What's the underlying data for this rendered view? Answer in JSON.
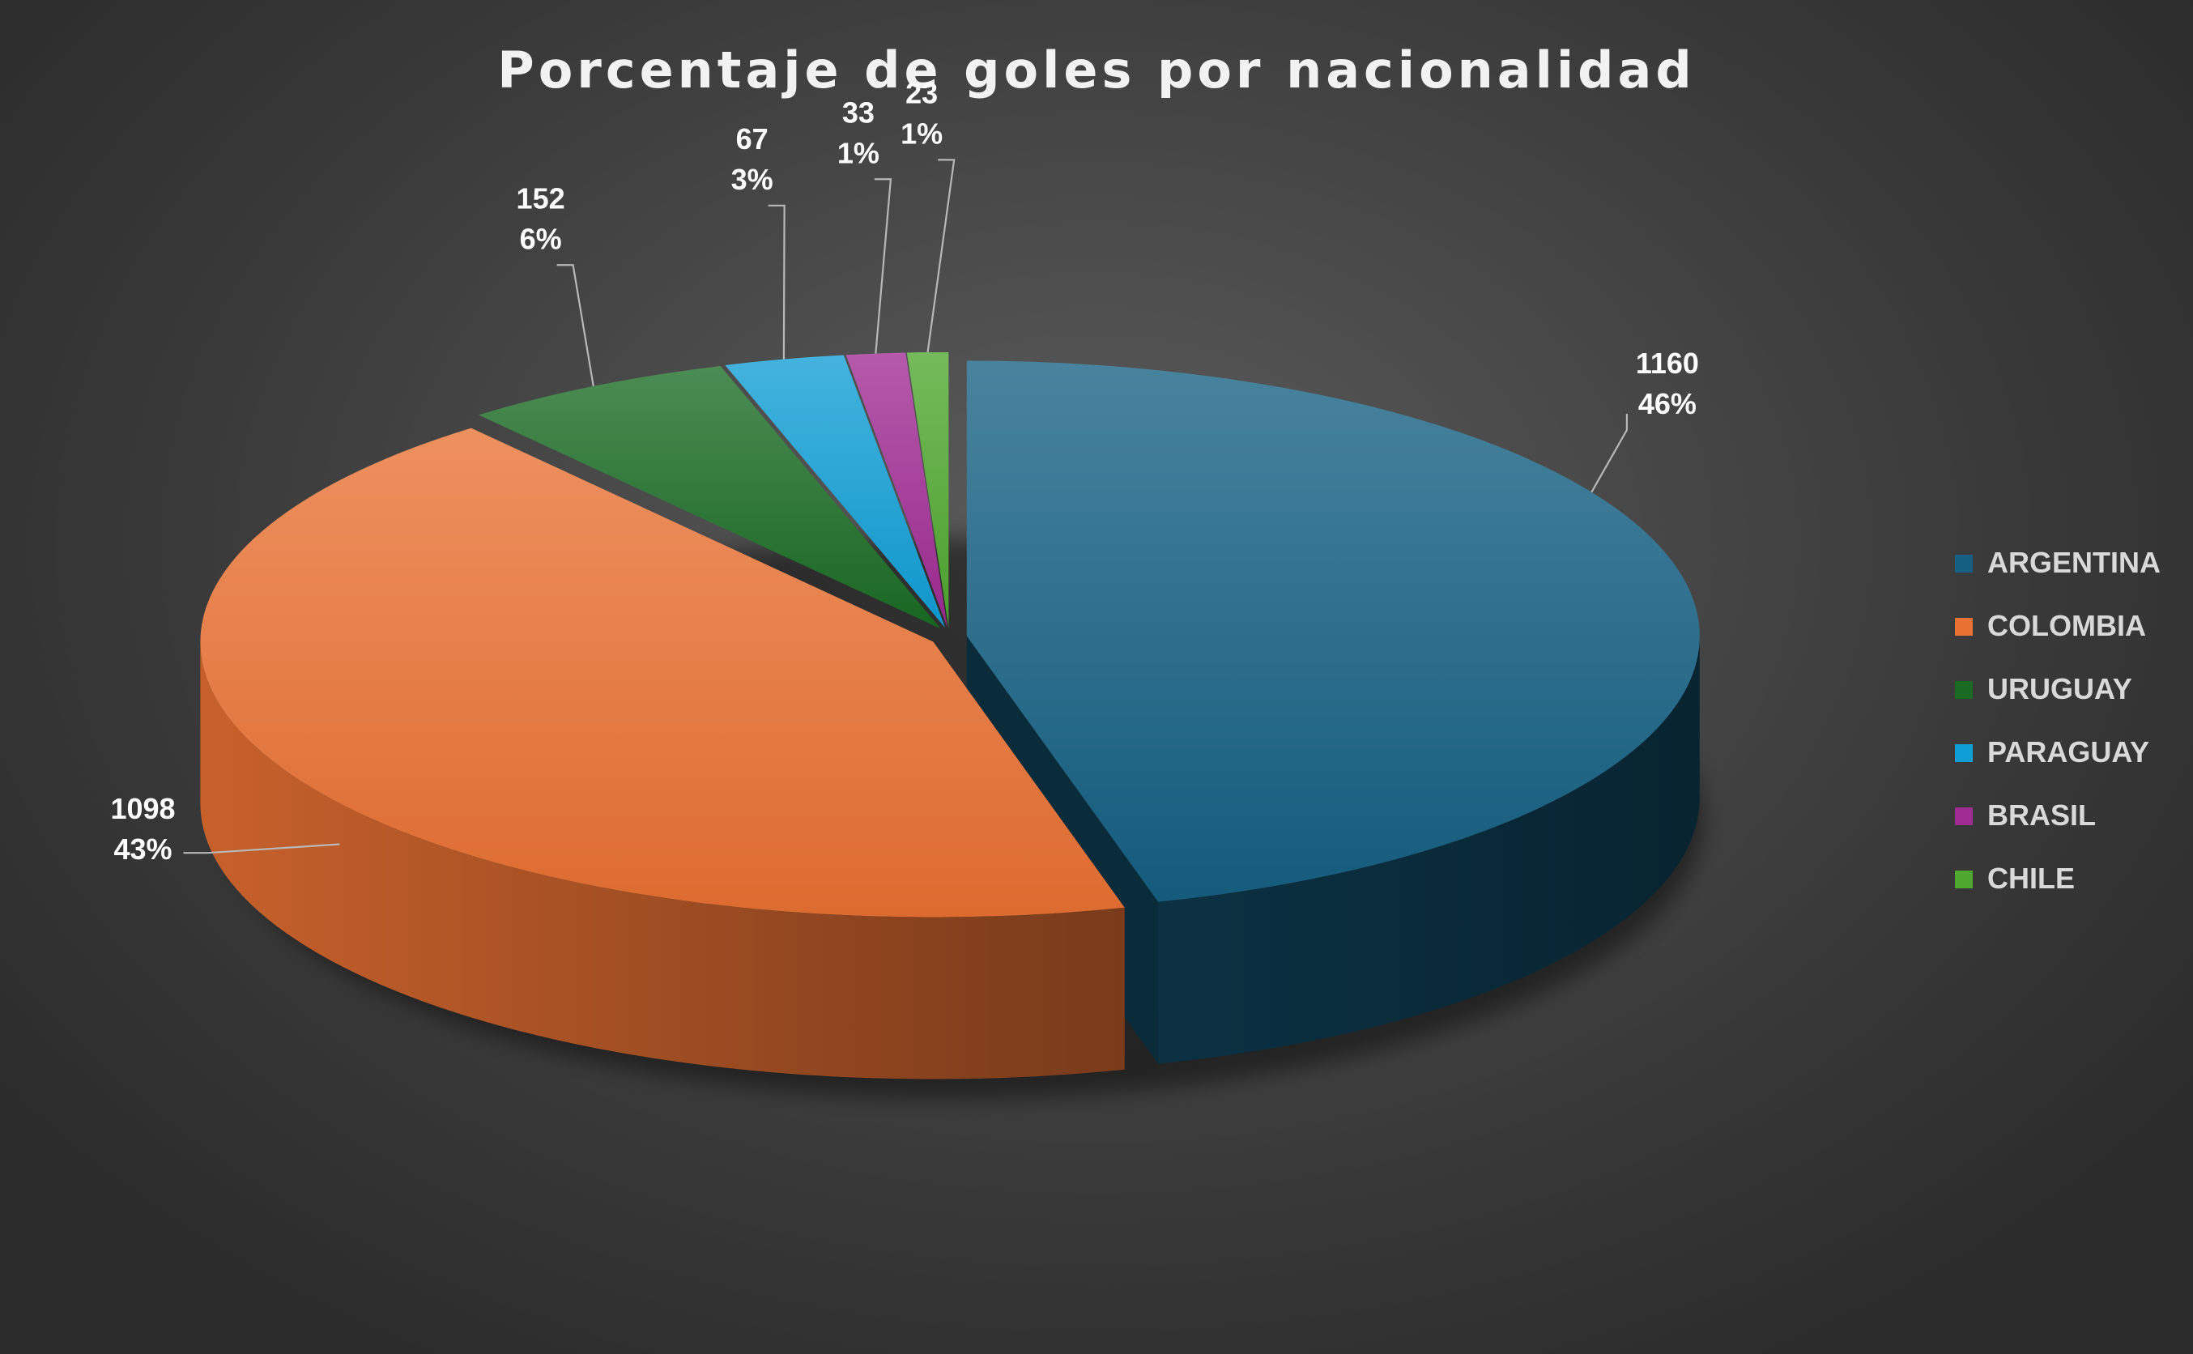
{
  "chart_data": {
    "type": "pie",
    "title": "Porcentaje de goles por nacionalidad",
    "categories": [
      "ARGENTINA",
      "COLOMBIA",
      "URUGUAY",
      "PARAGUAY",
      "BRASIL",
      "CHILE"
    ],
    "values": [
      1160,
      1098,
      152,
      67,
      33,
      23
    ],
    "percent_labels": [
      "46%",
      "43%",
      "6%",
      "3%",
      "1%",
      "1%"
    ],
    "colors": [
      "#156082",
      "#e97132",
      "#196b24",
      "#0f9ed5",
      "#a02b93",
      "#4ea72e"
    ],
    "legend_position": "right",
    "style": "3d-exploded-pie"
  }
}
